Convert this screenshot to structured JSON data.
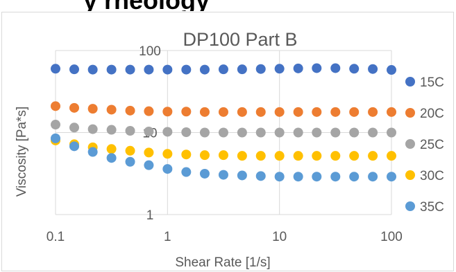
{
  "page_heading_fragment": "y   rheology",
  "chart_data": {
    "type": "scatter",
    "title": "DP100 Part B",
    "xlabel": "Shear Rate [1/s]",
    "ylabel": "Viscosity [Pa*s]",
    "x_scale": "log",
    "y_scale": "log",
    "xlim": [
      0.1,
      100
    ],
    "ylim": [
      1,
      100
    ],
    "x_ticks": [
      "0.1",
      "1",
      "10",
      "100"
    ],
    "y_ticks": [
      "1",
      "10",
      "100"
    ],
    "grid": true,
    "legend_position": "right",
    "x": [
      0.1,
      0.147,
      0.215,
      0.316,
      0.464,
      0.681,
      1.0,
      1.47,
      2.15,
      3.16,
      4.64,
      6.81,
      10.0,
      14.7,
      21.5,
      31.6,
      46.4,
      68.1,
      100
    ],
    "series": [
      {
        "name": "15C",
        "color": "#4472c4",
        "values": [
          60,
          59,
          58.5,
          58.5,
          58.5,
          58.5,
          58.5,
          58.5,
          58.5,
          59,
          59,
          59.5,
          60,
          60.5,
          61,
          61,
          60,
          59.5,
          58
        ]
      },
      {
        "name": "20C",
        "color": "#ed7d31",
        "values": [
          21,
          20,
          19.5,
          19,
          18.5,
          18.2,
          18,
          18,
          17.8,
          17.8,
          17.8,
          17.8,
          17.8,
          17.8,
          17.8,
          17.8,
          17.8,
          17.8,
          17.8
        ]
      },
      {
        "name": "25C",
        "color": "#a5a5a5",
        "values": [
          12.5,
          11.5,
          11,
          10.8,
          10.5,
          10.3,
          10.2,
          10.1,
          10,
          10,
          10,
          10,
          10,
          10,
          10,
          10,
          10,
          10,
          10
        ]
      },
      {
        "name": "30C",
        "color": "#ffc000",
        "values": [
          8,
          7.2,
          6.6,
          6.3,
          6,
          5.7,
          5.5,
          5.4,
          5.3,
          5.3,
          5.2,
          5.2,
          5.2,
          5.2,
          5.2,
          5.2,
          5.2,
          5.2,
          5.2
        ]
      },
      {
        "name": "35C",
        "color": "#5b9bd5",
        "values": [
          8.5,
          6.8,
          5.8,
          4.9,
          4.4,
          4.0,
          3.6,
          3.3,
          3.15,
          3.05,
          3.0,
          2.95,
          2.9,
          2.9,
          2.9,
          2.9,
          2.9,
          2.9,
          2.9
        ]
      }
    ]
  }
}
